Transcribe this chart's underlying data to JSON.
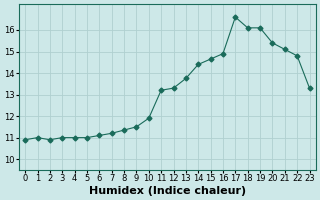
{
  "x": [
    0,
    1,
    2,
    3,
    4,
    5,
    6,
    7,
    8,
    9,
    10,
    11,
    12,
    13,
    14,
    15,
    16,
    17,
    18,
    19,
    20,
    21,
    22,
    23
  ],
  "y": [
    10.9,
    11.0,
    10.9,
    11.0,
    11.0,
    11.0,
    11.1,
    11.2,
    11.35,
    11.5,
    11.9,
    13.2,
    13.3,
    13.75,
    14.4,
    14.65,
    14.9,
    16.6,
    16.1,
    16.1,
    15.4,
    15.1,
    14.8,
    13.3
  ],
  "line_color": "#1a6b5a",
  "marker": "D",
  "marker_size": 2.5,
  "bg_color": "#cde8e8",
  "grid_color": "#b0d0d0",
  "xlabel": "Humidex (Indice chaleur)",
  "xlim": [
    -0.5,
    23.5
  ],
  "ylim": [
    9.5,
    17.2
  ],
  "yticks": [
    10,
    11,
    12,
    13,
    14,
    15,
    16
  ],
  "xticks": [
    0,
    1,
    2,
    3,
    4,
    5,
    6,
    7,
    8,
    9,
    10,
    11,
    12,
    13,
    14,
    15,
    16,
    17,
    18,
    19,
    20,
    21,
    22,
    23
  ],
  "axis_fontsize": 7,
  "tick_fontsize": 6,
  "xlabel_fontsize": 8
}
